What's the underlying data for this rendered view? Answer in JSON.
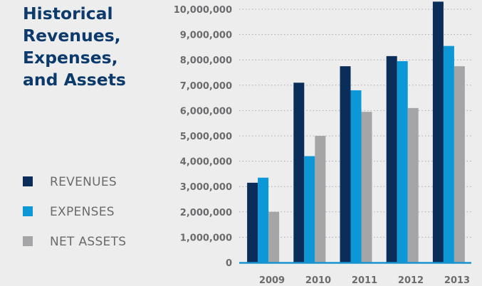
{
  "title_lines": [
    "Historical",
    "Revenues,",
    "Expenses,",
    "and Assets"
  ],
  "legend": [
    {
      "label": "REVENUES",
      "color": "#0b2d59"
    },
    {
      "label": "EXPENSES",
      "color": "#0c97d6"
    },
    {
      "label": "NET ASSETS",
      "color": "#a5a5a8"
    }
  ],
  "chart_data": {
    "type": "bar",
    "title": "Historical Revenues, Expenses, and Assets",
    "categories": [
      "2009",
      "2010",
      "2011",
      "2012",
      "2013"
    ],
    "series": [
      {
        "name": "REVENUES",
        "color": "#0b2d59",
        "values": [
          3150000,
          7100000,
          7750000,
          8150000,
          10300000
        ]
      },
      {
        "name": "EXPENSES",
        "color": "#0c97d6",
        "values": [
          3350000,
          4200000,
          6800000,
          7950000,
          8550000
        ]
      },
      {
        "name": "NET ASSETS",
        "color": "#a5a5a8",
        "values": [
          2000000,
          5000000,
          5950000,
          6100000,
          7750000
        ]
      }
    ],
    "yticks": [
      "0",
      "1,000,000",
      "2,000,000",
      "3,000,000",
      "4,000,000",
      "5,000,000",
      "6,000,000",
      "7,000,000",
      "8,000,000",
      "9,000,000",
      "10,000,000"
    ],
    "ylim": [
      0,
      10000000
    ],
    "grid": true,
    "legend_position": "left"
  }
}
